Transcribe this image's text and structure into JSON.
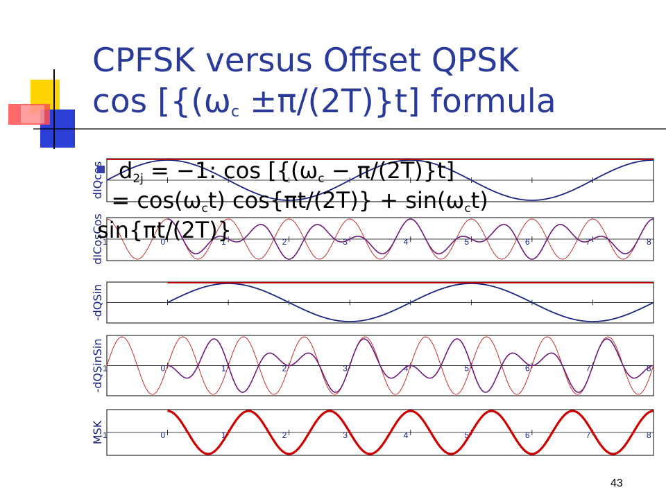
{
  "title": {
    "line1": "CPFSK versus Offset QPSK",
    "line2_pre": "cos [{(ω",
    "line2_sub": "c",
    "line2_post": " ±π/(2T)}t] formula"
  },
  "bullet": {
    "a": "d",
    "a_sub": "2j",
    "b": " = −1: cos [{(ω",
    "b_sub": "c",
    "c": " − π/(2T)}t]",
    "d": "  = cos(ω",
    "d_sub": "c",
    "e": "t) cos{πt/(2T)} + sin(ω",
    "e_sub": "c",
    "f": "t)",
    "g": "sin{πt/(2T)}"
  },
  "page_number": "43",
  "colors": {
    "title": "#2a3a98",
    "navy": "#1a237e",
    "purple": "#6a1a7a",
    "red": "#cc0000",
    "thin_red": "#c03030"
  },
  "chart_data": {
    "type": "line",
    "x_range": [
      -1,
      8
    ],
    "panels": [
      {
        "ylabel": "dIQcos",
        "ticks": [],
        "series": [
          "envelope cos(πt/2T)",
          "reference level"
        ]
      },
      {
        "ylabel": "dICosCos",
        "ticks": [
          "-1",
          "0",
          "1",
          "2",
          "3",
          "4",
          "5",
          "6",
          "7",
          "8"
        ],
        "series": [
          "carrier cos(ωc t)",
          "product"
        ]
      },
      {
        "ylabel": "-dQSin",
        "ticks": [],
        "series": [
          "envelope sin(πt/2T)",
          "reference level"
        ]
      },
      {
        "ylabel": "-dQSinSin",
        "ticks": [
          "-1",
          "0",
          "1",
          "2",
          "3",
          "4",
          "5",
          "6",
          "7",
          "8"
        ],
        "series": [
          "carrier sin(ωc t)",
          "product"
        ]
      },
      {
        "ylabel": "MSK",
        "ticks": [
          "-1",
          "0",
          "1",
          "2",
          "3",
          "4",
          "5",
          "6",
          "7",
          "8"
        ],
        "series": [
          "MSK signal"
        ]
      }
    ]
  }
}
